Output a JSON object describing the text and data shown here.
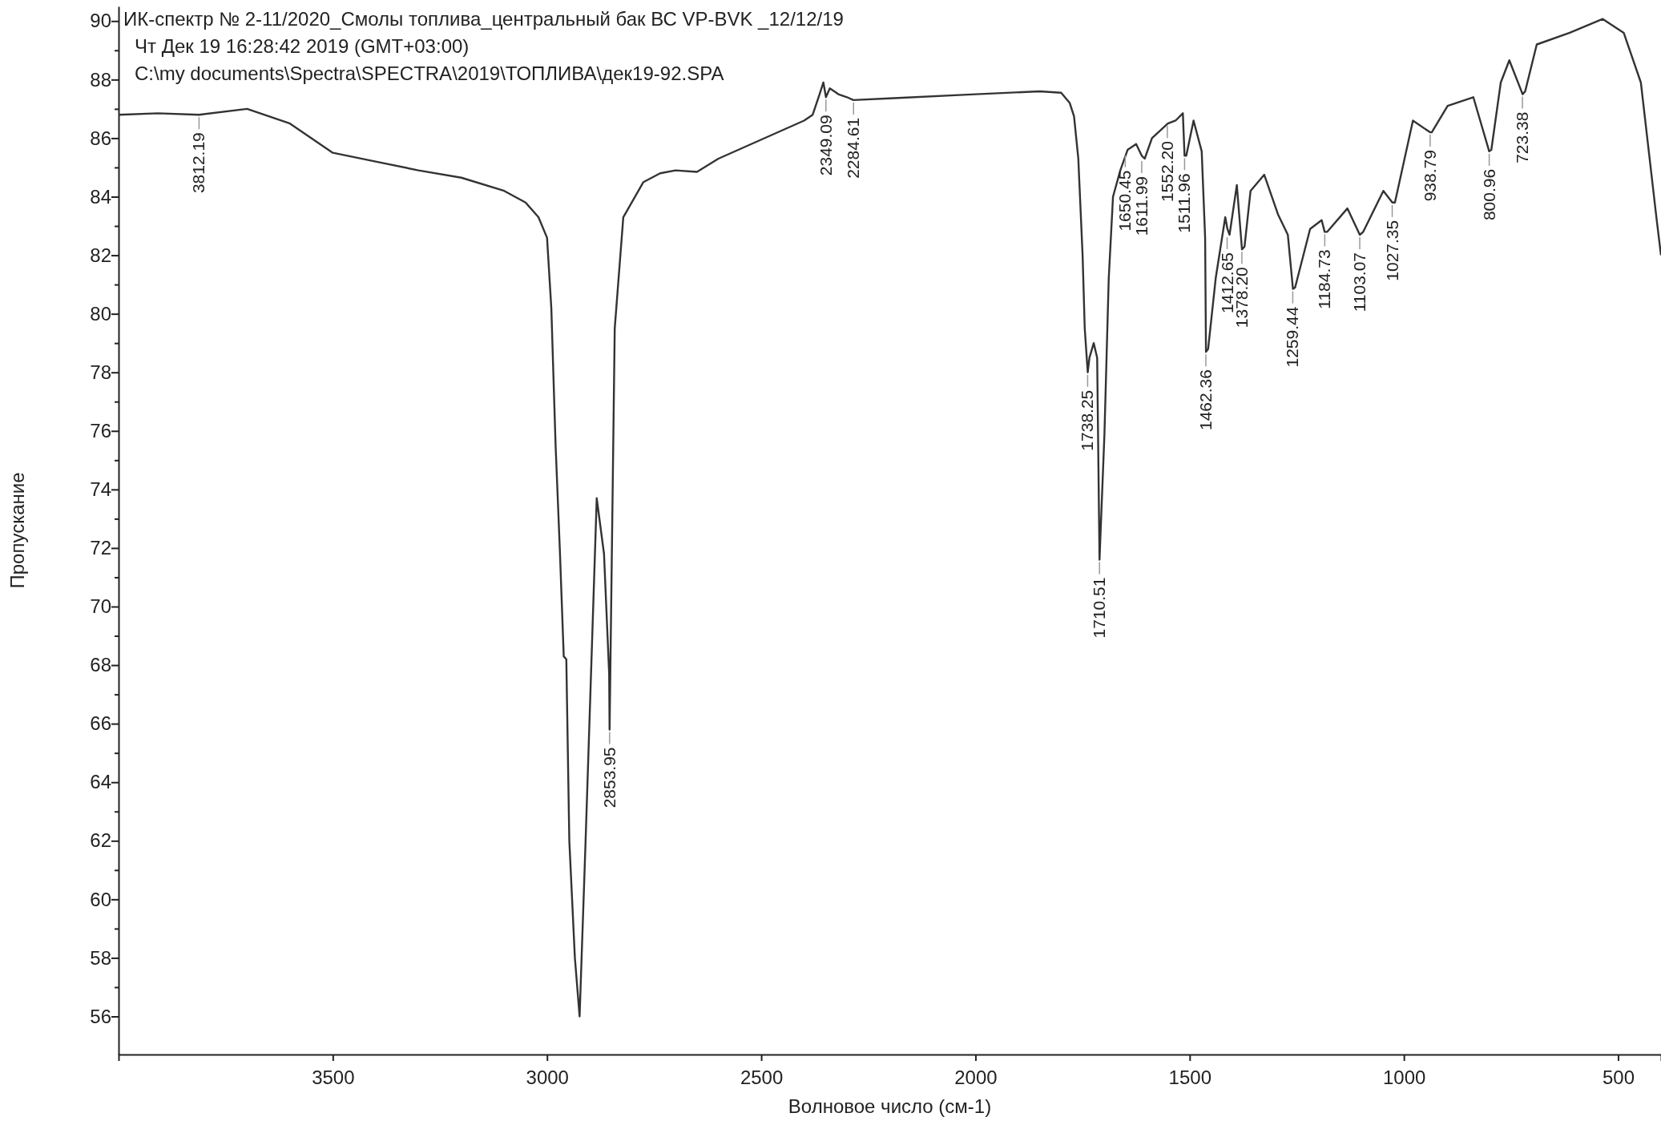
{
  "chart_data": {
    "type": "line",
    "title": "ИК-спектр № 2-11/2020_Смолы топлива_центральный бак ВС VP-BVK _12/12/19",
    "subtitle": "Чт Дек 19 16:28:42 2019 (GMT+03:00)",
    "xlabel": "Волновое число (см-1)",
    "ylabel": "Пропускание",
    "xlim": [
      4000,
      400
    ],
    "ylim": [
      54.7,
      90.5
    ],
    "xticks": [
      3500,
      3000,
      2500,
      2000,
      1500,
      1000,
      500
    ],
    "yticks": [
      56,
      {
        "value": 57,
        "label": null
      },
      58,
      {
        "value": 59,
        "label": null
      },
      60,
      {
        "value": 61,
        "label": null
      },
      62,
      {
        "value": 63,
        "label": null
      },
      64,
      {
        "value": 65,
        "label": null
      },
      66,
      {
        "value": 67,
        "label": null
      },
      68,
      {
        "value": 69,
        "label": null
      },
      70,
      {
        "value": 71,
        "label": null
      },
      72,
      {
        "value": 73,
        "label": null
      },
      74,
      {
        "value": 75,
        "label": null
      },
      76,
      {
        "value": 77,
        "label": null
      },
      78,
      {
        "value": 79,
        "label": null
      },
      80,
      {
        "value": 81,
        "label": null
      },
      82,
      {
        "value": 83,
        "label": null
      },
      84,
      {
        "value": 85,
        "label": null
      },
      86,
      {
        "value": 87,
        "label": null
      },
      88,
      {
        "value": 89,
        "label": null
      },
      90
    ],
    "grid": false,
    "marker": "none",
    "line_style": "solid",
    "series": [
      {
        "color": "#333333",
        "x": [
          4000,
          3908,
          3812,
          3700,
          3600,
          3500,
          3400,
          3300,
          3200,
          3100,
          3050,
          3020,
          3000,
          2990,
          2980,
          2970,
          2961,
          2955,
          2948,
          2935,
          2924,
          2910,
          2884,
          2867,
          2855,
          2854,
          2842,
          2822,
          2775,
          2736,
          2700,
          2650,
          2600,
          2500,
          2400,
          2380,
          2365,
          2355,
          2349,
          2340,
          2320,
          2300,
          2285,
          2200,
          2000,
          1850,
          1800,
          1780,
          1770,
          1760,
          1750,
          1745,
          1738,
          1734,
          1724,
          1716,
          1710.5,
          1699,
          1689,
          1679,
          1662,
          1645,
          1625,
          1612,
          1605,
          1588,
          1551,
          1533,
          1516,
          1512,
          1508,
          1491,
          1472,
          1464,
          1462,
          1457,
          1439,
          1417,
          1412,
          1407,
          1390,
          1378,
          1372,
          1358,
          1326,
          1294,
          1271,
          1259,
          1254,
          1219,
          1192,
          1185,
          1179,
          1132,
          1103,
          1095,
          1048,
          1027,
          1021,
          979,
          939,
          935,
          898,
          838,
          801,
          796,
          774,
          754,
          723,
          717,
          690,
          613,
          536,
          487,
          447,
          410,
          400
        ],
        "values": [
          86.8,
          86.85,
          86.8,
          87.0,
          86.5,
          85.5,
          85.2,
          84.9,
          84.65,
          84.2,
          83.8,
          83.3,
          82.6,
          80.2,
          75.5,
          71.9,
          68.3,
          68.2,
          62.0,
          58.0,
          56.0,
          62.0,
          73.7,
          71.8,
          67.7,
          65.8,
          79.5,
          83.3,
          84.5,
          84.8,
          84.9,
          84.85,
          85.3,
          85.95,
          86.6,
          86.8,
          87.45,
          87.9,
          87.4,
          87.7,
          87.5,
          87.4,
          87.3,
          87.36,
          87.5,
          87.6,
          87.55,
          87.2,
          86.75,
          85.3,
          82.0,
          79.5,
          78.0,
          78.5,
          79.0,
          78.5,
          71.6,
          75.9,
          81.2,
          84.0,
          84.9,
          85.6,
          85.8,
          85.4,
          85.3,
          86.0,
          86.5,
          86.6,
          86.85,
          85.4,
          85.4,
          86.6,
          85.55,
          82.6,
          78.7,
          78.8,
          81.25,
          83.3,
          82.9,
          82.7,
          84.4,
          82.2,
          82.3,
          84.2,
          84.75,
          83.4,
          82.7,
          80.85,
          80.9,
          82.9,
          83.2,
          82.8,
          82.8,
          83.6,
          82.7,
          82.8,
          84.2,
          83.8,
          83.8,
          86.6,
          86.2,
          86.2,
          87.1,
          87.4,
          85.55,
          85.6,
          87.9,
          88.66,
          87.5,
          87.6,
          89.2,
          89.6,
          90.07,
          89.6,
          87.9,
          83.2,
          82.0
        ]
      }
    ],
    "annotations": [
      "C:\\my documents\\Spectra\\SPECTRA\\2019\\ТОПЛИВА\\дек19-92.SPA",
      {
        "text": "3812.19",
        "x": 3812.19,
        "y": 86.8
      },
      {
        "text": "2853.95",
        "x": 2853.95,
        "y": 65.8
      },
      {
        "text": "2349.09",
        "x": 2349.09,
        "y": 87.4
      },
      {
        "text": "2284.61",
        "x": 2284.61,
        "y": 87.3
      },
      {
        "text": "1738.25",
        "x": 1738.25,
        "y": 78.0
      },
      {
        "text": "1710.51",
        "x": 1710.51,
        "y": 71.6
      },
      {
        "text": "1650.45",
        "x": 1650.45,
        "y": 85.5
      },
      {
        "text": "1611.99",
        "x": 1611.99,
        "y": 85.3
      },
      {
        "text": "1552.20",
        "x": 1552.2,
        "y": 86.5
      },
      {
        "text": "1511.96",
        "x": 1511.96,
        "y": 85.4
      },
      {
        "text": "1462.36",
        "x": 1462.36,
        "y": 78.7
      },
      {
        "text": "1412.65",
        "x": 1412.65,
        "y": 82.7
      },
      {
        "text": "1378.20",
        "x": 1378.2,
        "y": 82.2
      },
      {
        "text": "1259.44",
        "x": 1259.44,
        "y": 80.85
      },
      {
        "text": "1184.73",
        "x": 1184.73,
        "y": 82.8
      },
      {
        "text": "1103.07",
        "x": 1103.07,
        "y": 82.7
      },
      {
        "text": "1027.35",
        "x": 1027.35,
        "y": 83.8
      },
      {
        "text": "938.79",
        "x": 938.79,
        "y": 86.2
      },
      {
        "text": "800.96",
        "x": 800.96,
        "y": 85.55
      },
      {
        "text": "723.38",
        "x": 723.38,
        "y": 87.5
      }
    ]
  }
}
